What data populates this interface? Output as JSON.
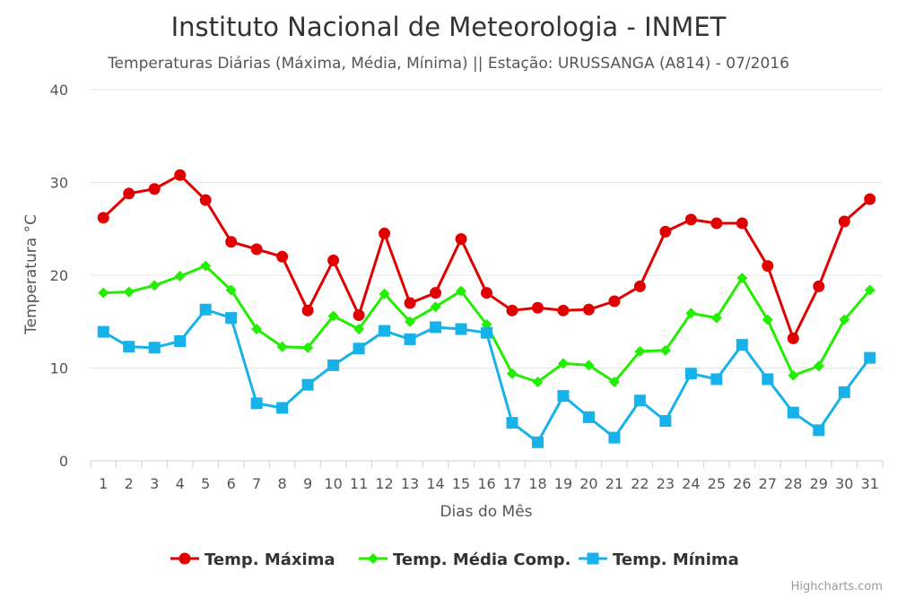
{
  "chart_data": {
    "type": "line",
    "title": "Instituto Nacional de Meteorologia - INMET",
    "subtitle": "Temperaturas Diárias (Máxima, Média, Mínima) || Estação: URUSSANGA (A814) - 07/2016",
    "xlabel": "Dias do Mês",
    "ylabel": "Temperatura °C",
    "ylim": [
      0,
      40
    ],
    "yticks": [
      0,
      10,
      20,
      30,
      40
    ],
    "x": [
      1,
      2,
      3,
      4,
      5,
      6,
      7,
      8,
      9,
      10,
      11,
      12,
      13,
      14,
      15,
      16,
      17,
      18,
      19,
      20,
      21,
      22,
      23,
      24,
      25,
      26,
      27,
      28,
      29,
      30,
      31
    ],
    "grid": "horizontal",
    "legend_position": "bottom-center",
    "credits": "Highcharts.com",
    "series": [
      {
        "name": "Temp. Máxima",
        "color": "#e00000",
        "marker": "circle",
        "values": [
          26.2,
          28.8,
          29.3,
          30.8,
          28.1,
          23.6,
          22.8,
          22.0,
          16.2,
          21.6,
          15.7,
          24.5,
          17.0,
          18.1,
          23.9,
          18.1,
          16.2,
          16.5,
          16.2,
          16.3,
          17.2,
          18.8,
          24.7,
          26.0,
          25.6,
          25.6,
          21.0,
          13.2,
          18.8,
          25.8,
          28.2
        ]
      },
      {
        "name": "Temp. Média Comp.",
        "color": "#22ee00",
        "marker": "diamond",
        "values": [
          18.1,
          18.2,
          18.9,
          19.9,
          21.0,
          18.4,
          14.2,
          12.3,
          12.2,
          15.6,
          14.2,
          18.0,
          15.0,
          16.6,
          18.3,
          14.7,
          9.4,
          8.5,
          10.5,
          10.3,
          8.5,
          11.8,
          11.9,
          15.9,
          15.4,
          19.7,
          15.2,
          9.2,
          10.2,
          15.2,
          18.4
        ]
      },
      {
        "name": "Temp. Mínima",
        "color": "#17b2ea",
        "marker": "square",
        "values": [
          13.9,
          12.3,
          12.2,
          12.9,
          16.3,
          15.4,
          6.2,
          5.7,
          8.2,
          10.3,
          12.1,
          14.0,
          13.1,
          14.4,
          14.2,
          13.8,
          4.1,
          2.0,
          7.0,
          4.7,
          2.5,
          6.5,
          4.3,
          9.4,
          8.8,
          12.5,
          8.8,
          5.2,
          3.3,
          7.4,
          11.1
        ]
      }
    ]
  }
}
